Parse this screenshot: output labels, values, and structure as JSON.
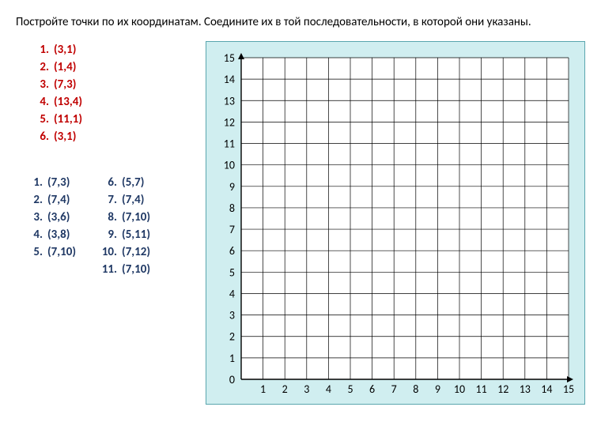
{
  "instruction": "Постройте точки по их координатам. Соедините их в той последовательности, в которой они указаны.",
  "red_list": [
    {
      "n": "1.",
      "c": "(3,1)"
    },
    {
      "n": "2.",
      "c": "(1,4)"
    },
    {
      "n": "3.",
      "c": "(7,3)"
    },
    {
      "n": "4.",
      "c": "(13,4)"
    },
    {
      "n": "5.",
      "c": "(11,1)"
    },
    {
      "n": "6.",
      "c": "(3,1)"
    }
  ],
  "blue_left": [
    {
      "n": "1.",
      "c": "(7,3)"
    },
    {
      "n": "2.",
      "c": "(7,4)"
    },
    {
      "n": "3.",
      "c": "(3,6)"
    },
    {
      "n": "4.",
      "c": "(3,8)"
    },
    {
      "n": "5.",
      "c": "(7,10)"
    }
  ],
  "blue_right": [
    {
      "n": "6.",
      "c": "(5,7)"
    },
    {
      "n": "7.",
      "c": "(7,4)"
    },
    {
      "n": "8.",
      "c": "(7,10)"
    },
    {
      "n": "9.",
      "c": "(5,11)"
    },
    {
      "n": "10.",
      "c": "(7,12)"
    },
    {
      "n": "11.",
      "c": "(7,10)"
    }
  ],
  "grid": {
    "xmin": 0,
    "xmax": 15,
    "ymin": 0,
    "ymax": 15,
    "xticks": [
      1,
      2,
      3,
      4,
      5,
      6,
      7,
      8,
      9,
      10,
      11,
      12,
      13,
      14,
      15
    ],
    "yticks": [
      0,
      1,
      2,
      3,
      4,
      5,
      6,
      7,
      8,
      9,
      10,
      11,
      12,
      13,
      14,
      15
    ],
    "grid_color": "#000000",
    "background": "#ffffff",
    "outer_bg": "#d0eef0",
    "outer_border": "#5aa6ae"
  },
  "colors": {
    "red": "#c00000",
    "blue": "#1f3864",
    "text": "#000000"
  }
}
